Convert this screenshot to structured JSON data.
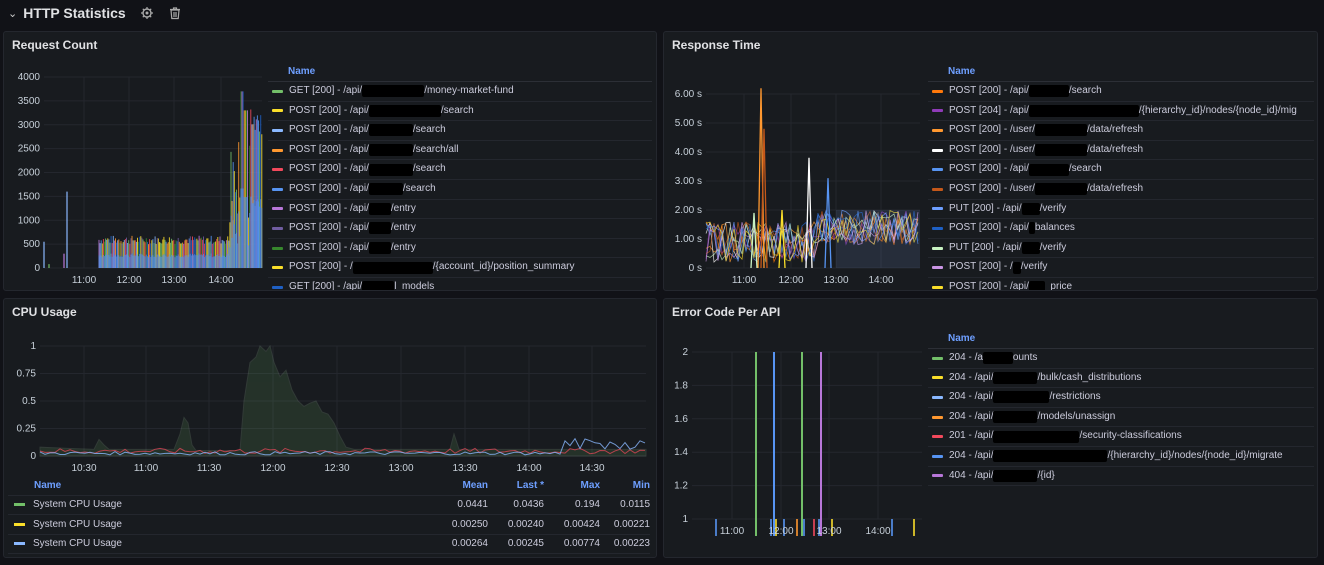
{
  "header": {
    "title": "HTTP Statistics"
  },
  "request": {
    "title": "Request Count",
    "yticks": [
      "4000",
      "3500",
      "3000",
      "2500",
      "2000",
      "1500",
      "1000",
      "500",
      "0"
    ],
    "xticks": [
      "11:00",
      "12:00",
      "13:00",
      "14:00"
    ],
    "legend_header": "Name",
    "items": [
      {
        "pre": "GET [200] - /api/",
        "w": 62,
        "post": "/money-market-fund",
        "color": "#73bf69"
      },
      {
        "pre": "POST [200] - /api/",
        "w": 72,
        "post": "/search",
        "color": "#fade2a"
      },
      {
        "pre": "POST [200] - /api/",
        "w": 44,
        "post": "/search",
        "color": "#8ab8ff"
      },
      {
        "pre": "POST [200] - /api/",
        "w": 44,
        "post": "/search/all",
        "color": "#ff9830"
      },
      {
        "pre": "POST [200] - /api/",
        "w": 44,
        "post": "/search",
        "color": "#f2495c"
      },
      {
        "pre": "POST [200] - /api/",
        "w": 34,
        "post": "/search",
        "color": "#5794f2"
      },
      {
        "pre": "POST [200] - /api/",
        "w": 22,
        "post": "/entry",
        "color": "#b877d9"
      },
      {
        "pre": "POST [200] - /api/",
        "w": 22,
        "post": "/entry",
        "color": "#705da0"
      },
      {
        "pre": "POST [200] - /api/",
        "w": 22,
        "post": "/entry",
        "color": "#37872d"
      },
      {
        "pre": "POST [200] - /",
        "w": 80,
        "post": "/{account_id}/position_summary",
        "color": "#fade2a"
      },
      {
        "pre": "GET [200] - /api/",
        "w": 32,
        "post": "l_models",
        "color": "#1f60c4"
      }
    ]
  },
  "response": {
    "title": "Response Time",
    "yticks": [
      "6.00 s",
      "5.00 s",
      "4.00 s",
      "3.00 s",
      "2.00 s",
      "1.00 s",
      "0 s"
    ],
    "xticks": [
      "11:00",
      "12:00",
      "13:00",
      "14:00"
    ],
    "legend_header": "Name",
    "items": [
      {
        "pre": "POST [200] - /api/",
        "w": 40,
        "post": "/search",
        "color": "#ff780a"
      },
      {
        "pre": "POST [204] - /api/",
        "w": 110,
        "post": "/{hierarchy_id}/nodes/{node_id}/mig",
        "color": "#8f3bb8"
      },
      {
        "pre": "POST [200] - /user/",
        "w": 52,
        "post": "/data/refresh",
        "color": "#ff9830"
      },
      {
        "pre": "POST [200] - /user/",
        "w": 52,
        "post": "/data/refresh",
        "color": "#ffffff"
      },
      {
        "pre": "POST [200] - /api/",
        "w": 40,
        "post": "/search",
        "color": "#5794f2"
      },
      {
        "pre": "POST [200] - /user/",
        "w": 52,
        "post": "/data/refresh",
        "color": "#c4581a"
      },
      {
        "pre": "PUT [200] - /api/",
        "w": 18,
        "post": "/verify",
        "color": "#6e9fff"
      },
      {
        "pre": "POST [200] - /api/",
        "w": 6,
        "post": "balances",
        "color": "#1f60c4"
      },
      {
        "pre": "PUT [200] - /api/",
        "w": 18,
        "post": "/verify",
        "color": "#c8f2c2"
      },
      {
        "pre": "POST [200] - /",
        "w": 8,
        "post": "/verify",
        "color": "#ca95e5"
      },
      {
        "pre": "POST [200] - /api/",
        "w": 16,
        "post": "_price",
        "color": "#fade2a"
      }
    ]
  },
  "cpu": {
    "title": "CPU Usage",
    "yticks": [
      "1",
      "0.75",
      "0.5",
      "0.25",
      "0"
    ],
    "xticks": [
      "10:30",
      "11:00",
      "11:30",
      "12:00",
      "12:30",
      "13:00",
      "13:30",
      "14:00",
      "14:30"
    ],
    "columns": {
      "name": "Name",
      "mean": "Mean",
      "last": "Last *",
      "max": "Max",
      "min": "Min"
    },
    "rows": [
      {
        "name": "System CPU Usage",
        "mean": "0.0441",
        "last": "0.0436",
        "max": "0.194",
        "min": "0.0115",
        "color": "#73bf69"
      },
      {
        "name": "System CPU Usage",
        "mean": "0.00250",
        "last": "0.00240",
        "max": "0.00424",
        "min": "0.00221",
        "color": "#fade2a"
      },
      {
        "name": "System CPU Usage",
        "mean": "0.00264",
        "last": "0.00245",
        "max": "0.00774",
        "min": "0.00223",
        "color": "#8ab8ff"
      }
    ]
  },
  "errors": {
    "title": "Error Code Per API",
    "yticks": [
      "2",
      "1.8",
      "1.6",
      "1.4",
      "1.2",
      "1"
    ],
    "xticks": [
      "11:00",
      "12:00",
      "13:00",
      "14:00"
    ],
    "legend_header": "Name",
    "items": [
      {
        "pre": "204 - /a",
        "w": 30,
        "post": "ounts",
        "color": "#73bf69"
      },
      {
        "pre": "204 - /api/",
        "w": 44,
        "post": "/bulk/cash_distributions",
        "color": "#fade2a"
      },
      {
        "pre": "204 - /api/",
        "w": 56,
        "post": "/restrictions",
        "color": "#8ab8ff"
      },
      {
        "pre": "204 - /api/",
        "w": 44,
        "post": "/models/unassign",
        "color": "#ff9830"
      },
      {
        "pre": "201 - /api/",
        "w": 86,
        "post": "/security-classifications",
        "color": "#f2495c"
      },
      {
        "pre": "204 - /api/",
        "w": 114,
        "post": "/{hierarchy_id}/nodes/{node_id}/migrate",
        "color": "#5794f2"
      },
      {
        "pre": "404 - /api/",
        "w": 44,
        "post": "/{id}",
        "color": "#b877d9"
      }
    ]
  }
}
